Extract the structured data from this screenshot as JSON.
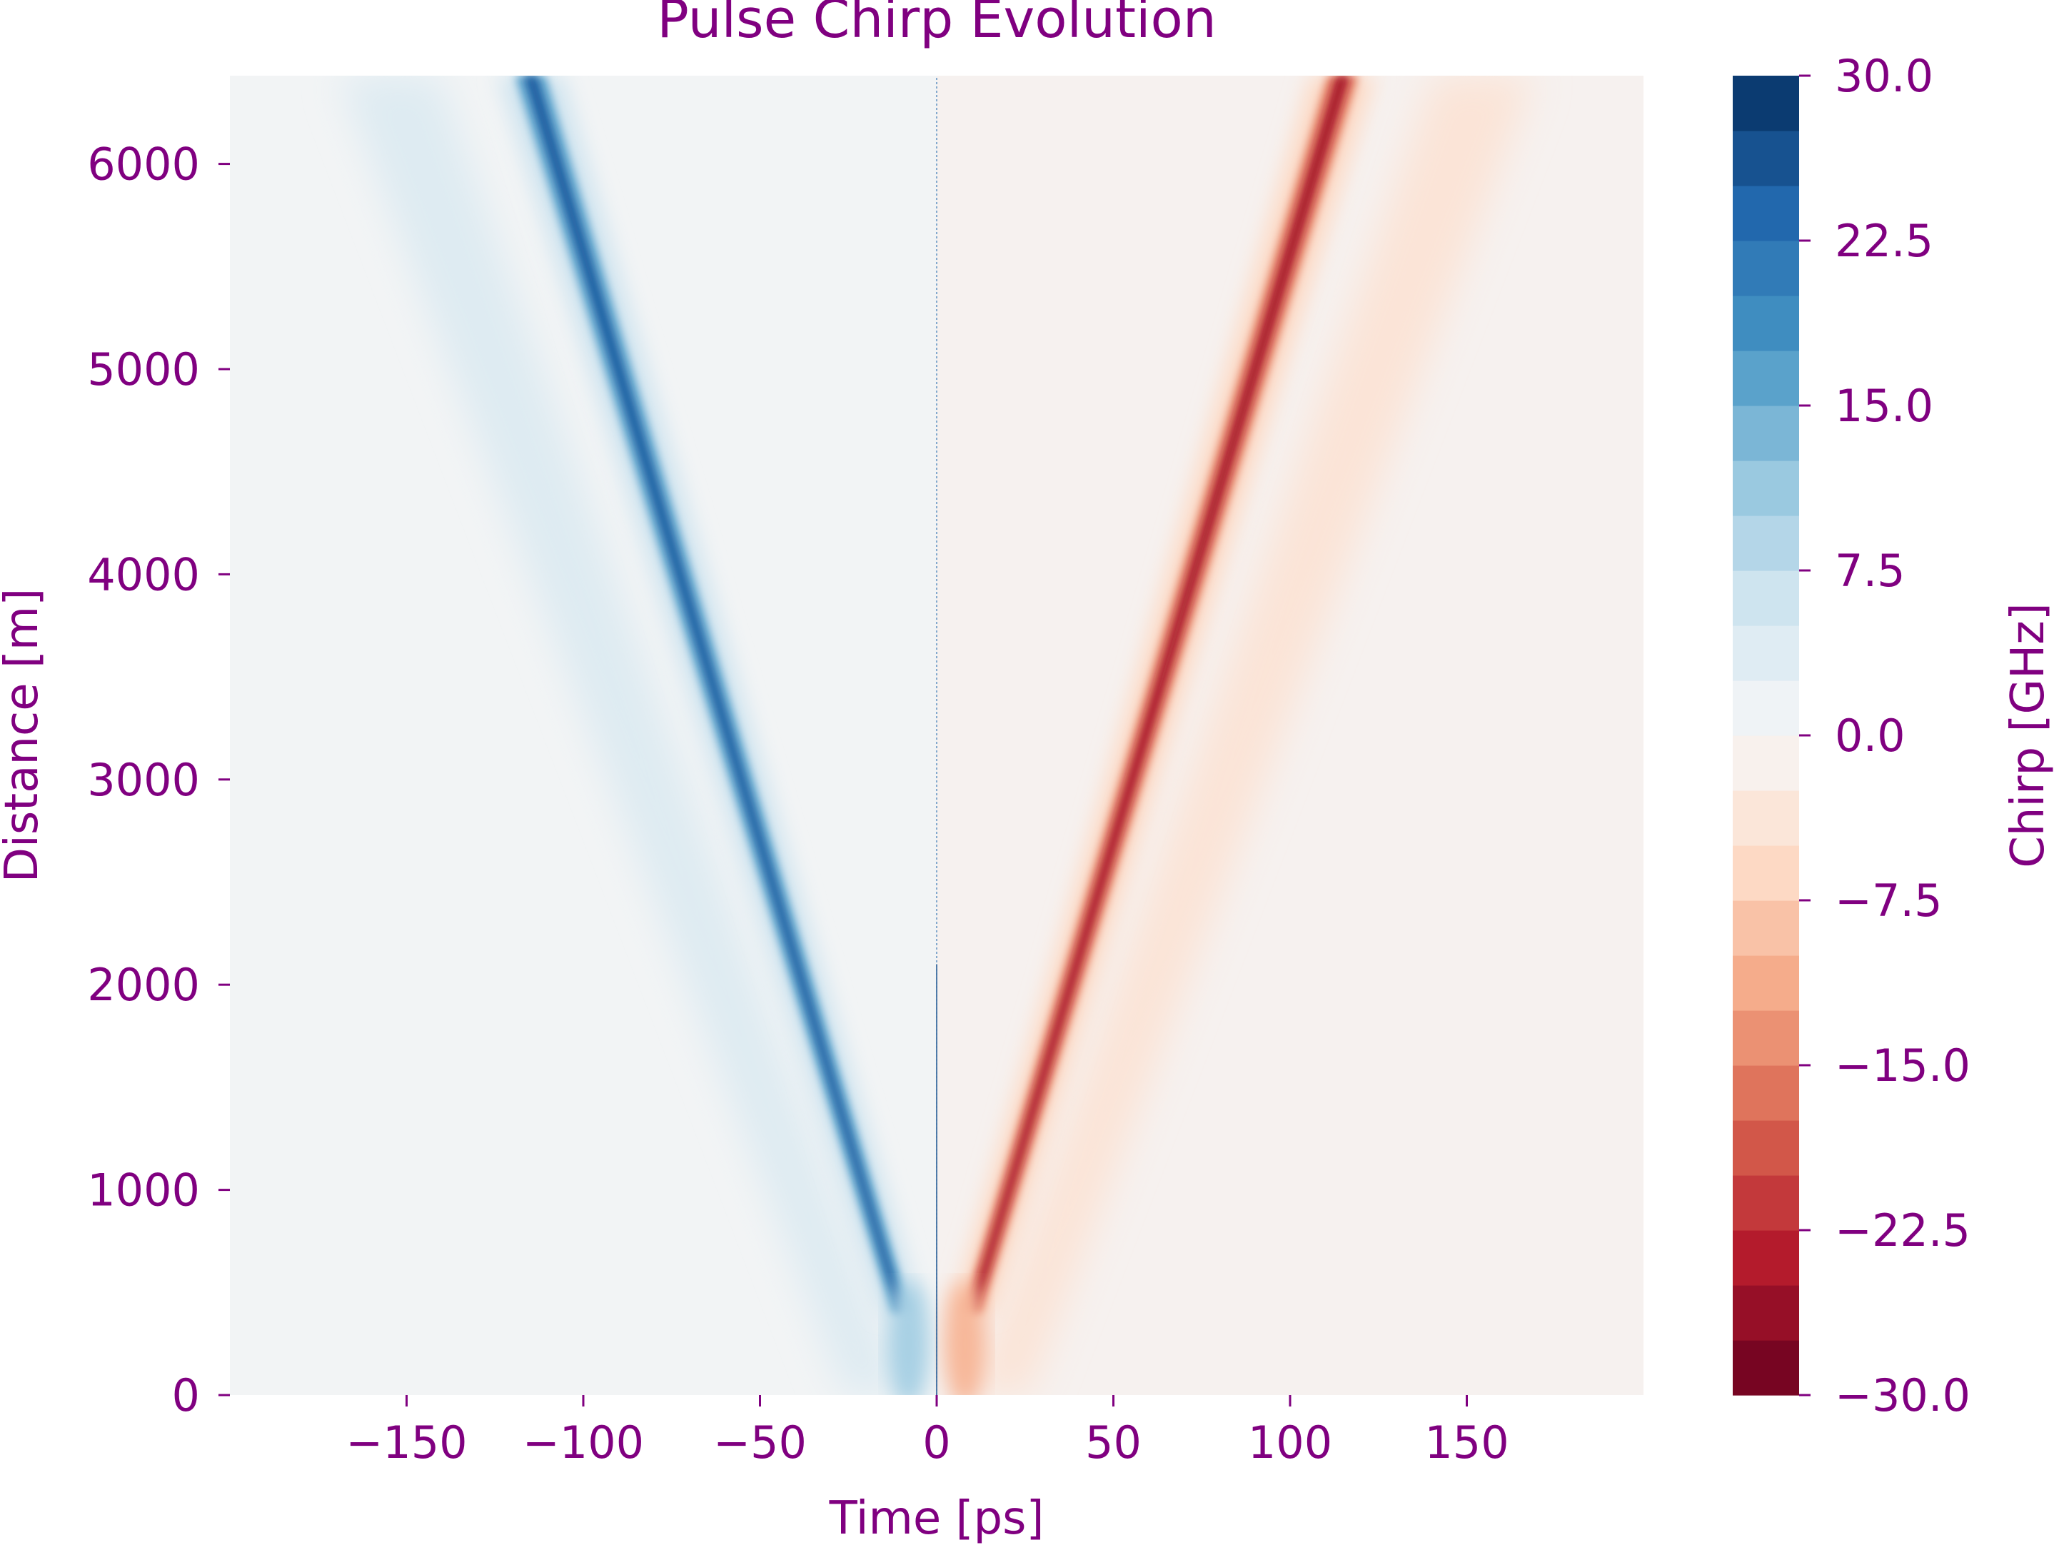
{
  "chart_data": {
    "type": "heatmap",
    "title": "Pulse Chirp Evolution",
    "xlabel": "Time [ps]",
    "ylabel": "Distance [m]",
    "colorbar_label": "Chirp [GHz]",
    "xlim": [
      -200,
      200
    ],
    "ylim": [
      0,
      6430
    ],
    "xticks": [
      -150,
      -100,
      -50,
      0,
      50,
      100,
      150
    ],
    "xtick_labels": [
      "−150",
      "−100",
      "−50",
      "0",
      "50",
      "100",
      "150"
    ],
    "yticks": [
      0,
      1000,
      2000,
      3000,
      4000,
      5000,
      6000
    ],
    "ytick_labels": [
      "0",
      "1000",
      "2000",
      "3000",
      "4000",
      "5000",
      "6000"
    ],
    "colorbar_range": [
      -30,
      30
    ],
    "colorbar_ticks": [
      30,
      22.5,
      15,
      7.5,
      0,
      -7.5,
      -15,
      -22.5,
      -30
    ],
    "colorbar_tick_labels": [
      "30.0",
      "22.5",
      "15.0",
      "7.5",
      "0.0",
      "−7.5",
      "−15.0",
      "−22.5",
      "−30.0"
    ],
    "colormap": "RdBu (negative = red, positive = blue)",
    "levels": 24,
    "text_color": "#800080",
    "grid": false,
    "features": [
      {
        "name": "main negative-time branch",
        "sign": "positive",
        "peak_chirp": 25,
        "points": [
          [
            -10,
            400
          ],
          [
            -115,
            6430
          ]
        ]
      },
      {
        "name": "main positive-time branch",
        "sign": "negative",
        "peak_chirp": -25,
        "points": [
          [
            10,
            400
          ],
          [
            115,
            6430
          ]
        ]
      },
      {
        "name": "secondary negative-time lobe",
        "sign": "positive",
        "peak_chirp": 4,
        "points": [
          [
            -18,
            0
          ],
          [
            -155,
            6430
          ]
        ]
      },
      {
        "name": "secondary positive-time lobe",
        "sign": "negative",
        "peak_chirp": -4,
        "points": [
          [
            18,
            0
          ],
          [
            155,
            6430
          ]
        ]
      }
    ]
  }
}
